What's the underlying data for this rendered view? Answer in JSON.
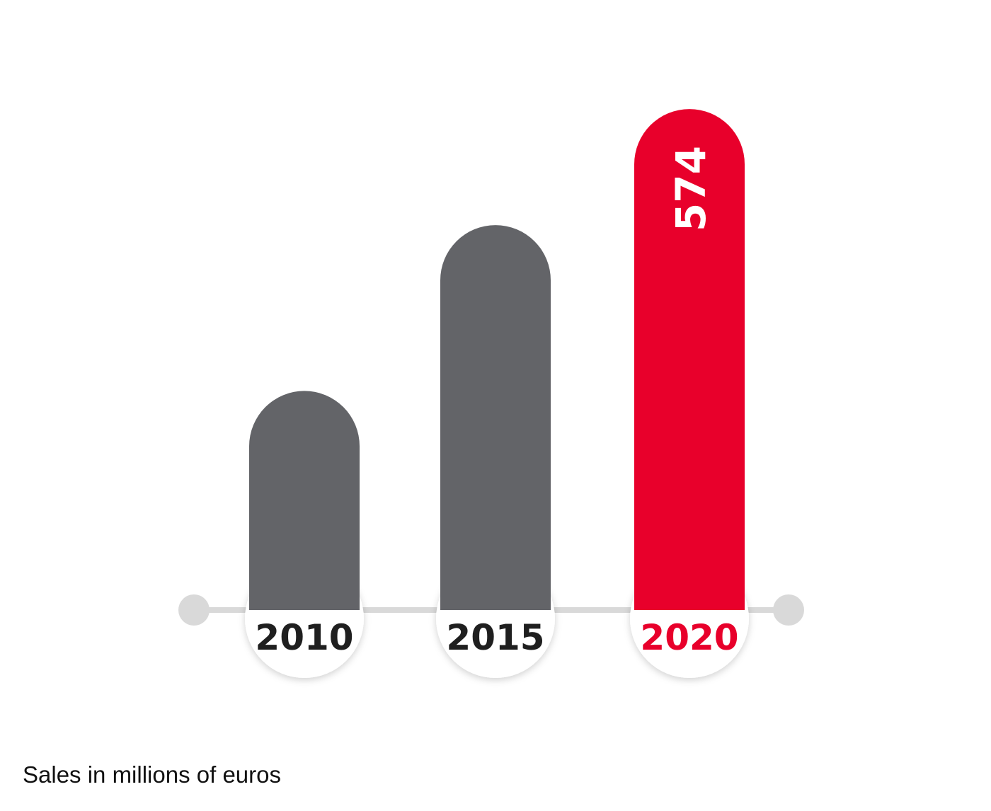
{
  "chart_data": {
    "type": "bar",
    "categories": [
      "2010",
      "2015",
      "2020"
    ],
    "values": [
      251,
      441,
      574
    ],
    "value_labels": [
      "",
      "",
      "574"
    ],
    "title": "",
    "xlabel": "",
    "ylabel": "",
    "ylim": [
      0,
      600
    ],
    "grid": false,
    "legend": "none",
    "colors": {
      "bar_default": "#636468",
      "bar_highlight": "#e8002b",
      "label_default": "#1f1f1f",
      "label_highlight": "#e8002b",
      "value_label": "#ffffff",
      "axis": "#d9d9d9"
    },
    "highlight_index": 2
  },
  "caption": "Sales in millions of euros"
}
